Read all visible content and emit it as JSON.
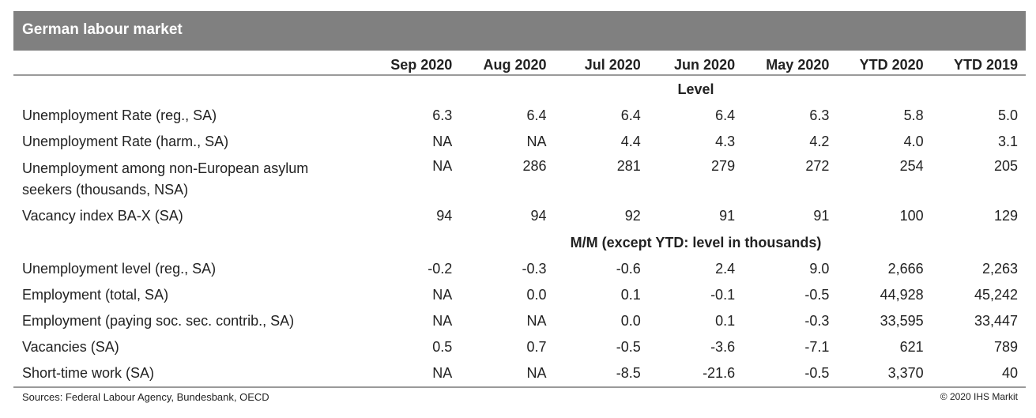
{
  "title": "German labour market",
  "columns": [
    "Sep 2020",
    "Aug 2020",
    "Jul 2020",
    "Jun 2020",
    "May 2020",
    "YTD 2020",
    "YTD 2019"
  ],
  "section_level": "Level",
  "section_mm": "M/M (except YTD: level in thousands)",
  "level_rows": [
    {
      "label": "Unemployment Rate (reg., SA)",
      "values": [
        "6.3",
        "6.4",
        "6.4",
        "6.4",
        "6.3",
        "5.8",
        "5.0"
      ]
    },
    {
      "label": "Unemployment Rate (harm., SA)",
      "values": [
        "NA",
        "NA",
        "4.4",
        "4.3",
        "4.2",
        "4.0",
        "3.1"
      ]
    },
    {
      "label_line1": "Unemployment among non-European asylum",
      "label_line2": "seekers (thousands, NSA)",
      "values": [
        "NA",
        "286",
        "281",
        "279",
        "272",
        "254",
        "205"
      ]
    },
    {
      "label": "Vacancy index BA-X (SA)",
      "values": [
        "94",
        "94",
        "92",
        "91",
        "91",
        "100",
        "129"
      ]
    }
  ],
  "mm_rows": [
    {
      "label": "Unemployment level (reg., SA)",
      "values": [
        "-0.2",
        "-0.3",
        "-0.6",
        "2.4",
        "9.0",
        "2,666",
        "2,263"
      ]
    },
    {
      "label": "Employment (total, SA)",
      "values": [
        "NA",
        "0.0",
        "0.1",
        "-0.1",
        "-0.5",
        "44,928",
        "45,242"
      ]
    },
    {
      "label": "Employment (paying soc. sec. contrib., SA)",
      "values": [
        "NA",
        "NA",
        "0.0",
        "0.1",
        "-0.3",
        "33,595",
        "33,447"
      ]
    },
    {
      "label": "Vacancies (SA)",
      "values": [
        "0.5",
        "0.7",
        "-0.5",
        "-3.6",
        "-7.1",
        "621",
        "789"
      ]
    },
    {
      "label": "Short-time work (SA)",
      "values": [
        "NA",
        "NA",
        "-8.5",
        "-21.6",
        "-0.5",
        "3,370",
        "40"
      ]
    }
  ],
  "footer": {
    "sources": "Sources: Federal Labour Agency, Bundesbank, OECD",
    "copyright": "© 2020 IHS Markit"
  },
  "colors": {
    "title_bar": "#808080",
    "rule": "#9a9a9a"
  }
}
